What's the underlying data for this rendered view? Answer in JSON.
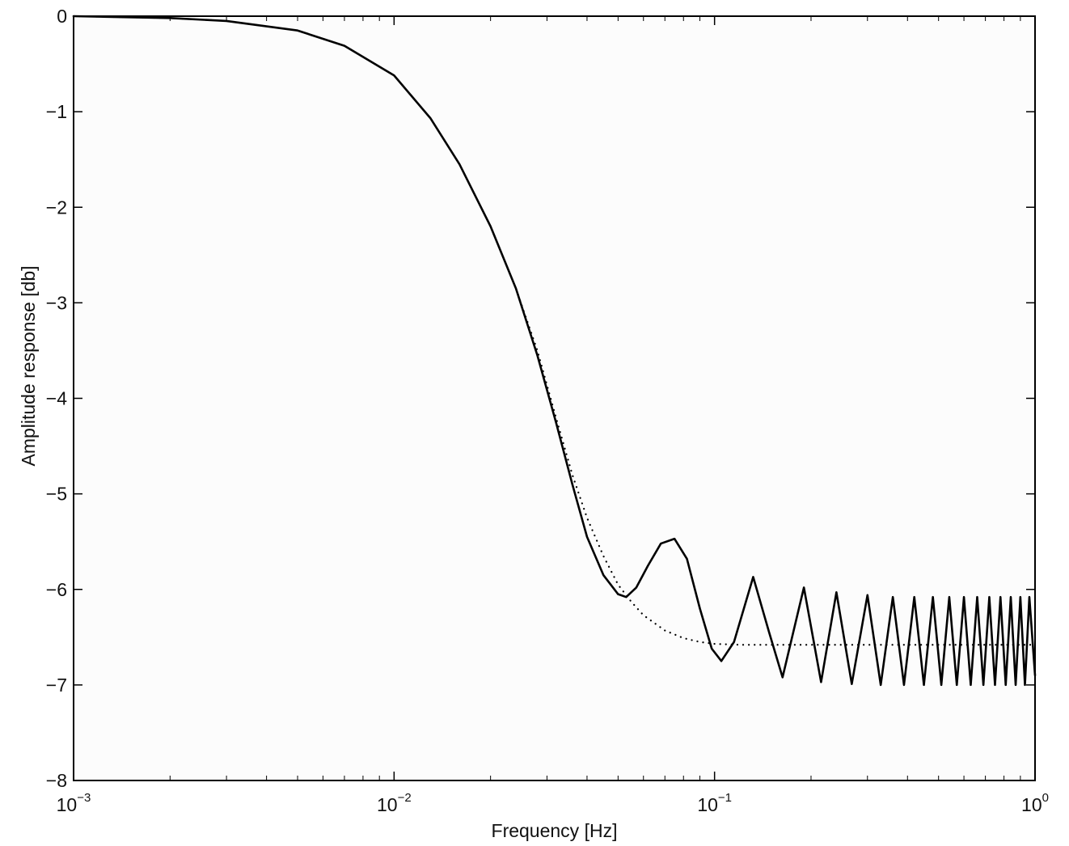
{
  "chart_data": {
    "type": "line",
    "title": "",
    "xlabel": "Frequency [Hz]",
    "ylabel": "Amplitude response [db]",
    "xscale": "log",
    "xlim": [
      0.001,
      1
    ],
    "ylim": [
      -8,
      0
    ],
    "grid": false,
    "x_ticks": [
      {
        "value": 0.001,
        "base": "10",
        "exp": "-3"
      },
      {
        "value": 0.01,
        "base": "10",
        "exp": "-2"
      },
      {
        "value": 0.1,
        "base": "10",
        "exp": "-1"
      },
      {
        "value": 1,
        "base": "10",
        "exp": "0"
      }
    ],
    "y_ticks": [
      "0",
      "-1",
      "-2",
      "-3",
      "-4",
      "-5",
      "-6",
      "-7",
      "-8"
    ],
    "series": [
      {
        "style": "solid",
        "color": "#000000",
        "x": [
          0.001,
          0.002,
          0.003,
          0.005,
          0.007,
          0.01,
          0.013,
          0.016,
          0.02,
          0.024,
          0.028,
          0.032,
          0.036,
          0.04,
          0.045,
          0.05,
          0.053,
          0.057,
          0.062,
          0.068,
          0.075,
          0.082,
          0.09,
          0.098,
          0.105,
          0.115,
          0.132,
          0.148,
          0.163,
          0.19,
          0.215,
          0.24,
          0.268,
          0.3,
          0.33,
          0.36,
          0.39,
          0.42,
          0.45,
          0.48,
          0.51,
          0.54,
          0.57,
          0.6,
          0.63,
          0.66,
          0.69,
          0.72,
          0.75,
          0.78,
          0.81,
          0.84,
          0.87,
          0.9,
          0.93,
          0.96,
          1.0
        ],
        "y": [
          0,
          -0.02,
          -0.05,
          -0.15,
          -0.31,
          -0.62,
          -1.07,
          -1.55,
          -2.2,
          -2.85,
          -3.55,
          -4.25,
          -4.9,
          -5.45,
          -5.85,
          -6.05,
          -6.08,
          -5.98,
          -5.75,
          -5.52,
          -5.47,
          -5.68,
          -6.2,
          -6.62,
          -6.75,
          -6.55,
          -5.87,
          -6.45,
          -6.92,
          -5.98,
          -6.97,
          -6.03,
          -6.99,
          -6.06,
          -7.0,
          -6.08,
          -7.0,
          -6.08,
          -7.0,
          -6.08,
          -7.0,
          -6.08,
          -7.0,
          -6.08,
          -7.0,
          -6.08,
          -7.0,
          -6.08,
          -7.0,
          -6.08,
          -7.0,
          -6.08,
          -7.0,
          -6.08,
          -7.0,
          -6.08,
          -6.9
        ]
      },
      {
        "style": "dotted",
        "color": "#000000",
        "x": [
          0.001,
          0.002,
          0.003,
          0.005,
          0.007,
          0.01,
          0.013,
          0.016,
          0.02,
          0.024,
          0.028,
          0.032,
          0.036,
          0.04,
          0.045,
          0.05,
          0.055,
          0.06,
          0.07,
          0.08,
          0.09,
          0.1,
          0.12,
          0.15,
          0.2,
          0.3,
          0.5,
          0.7,
          1.0
        ],
        "y": [
          0,
          -0.02,
          -0.05,
          -0.15,
          -0.31,
          -0.62,
          -1.07,
          -1.55,
          -2.2,
          -2.85,
          -3.5,
          -4.2,
          -4.8,
          -5.25,
          -5.65,
          -5.95,
          -6.13,
          -6.27,
          -6.43,
          -6.51,
          -6.55,
          -6.57,
          -6.58,
          -6.58,
          -6.58,
          -6.58,
          -6.58,
          -6.58,
          -6.58
        ]
      }
    ]
  }
}
